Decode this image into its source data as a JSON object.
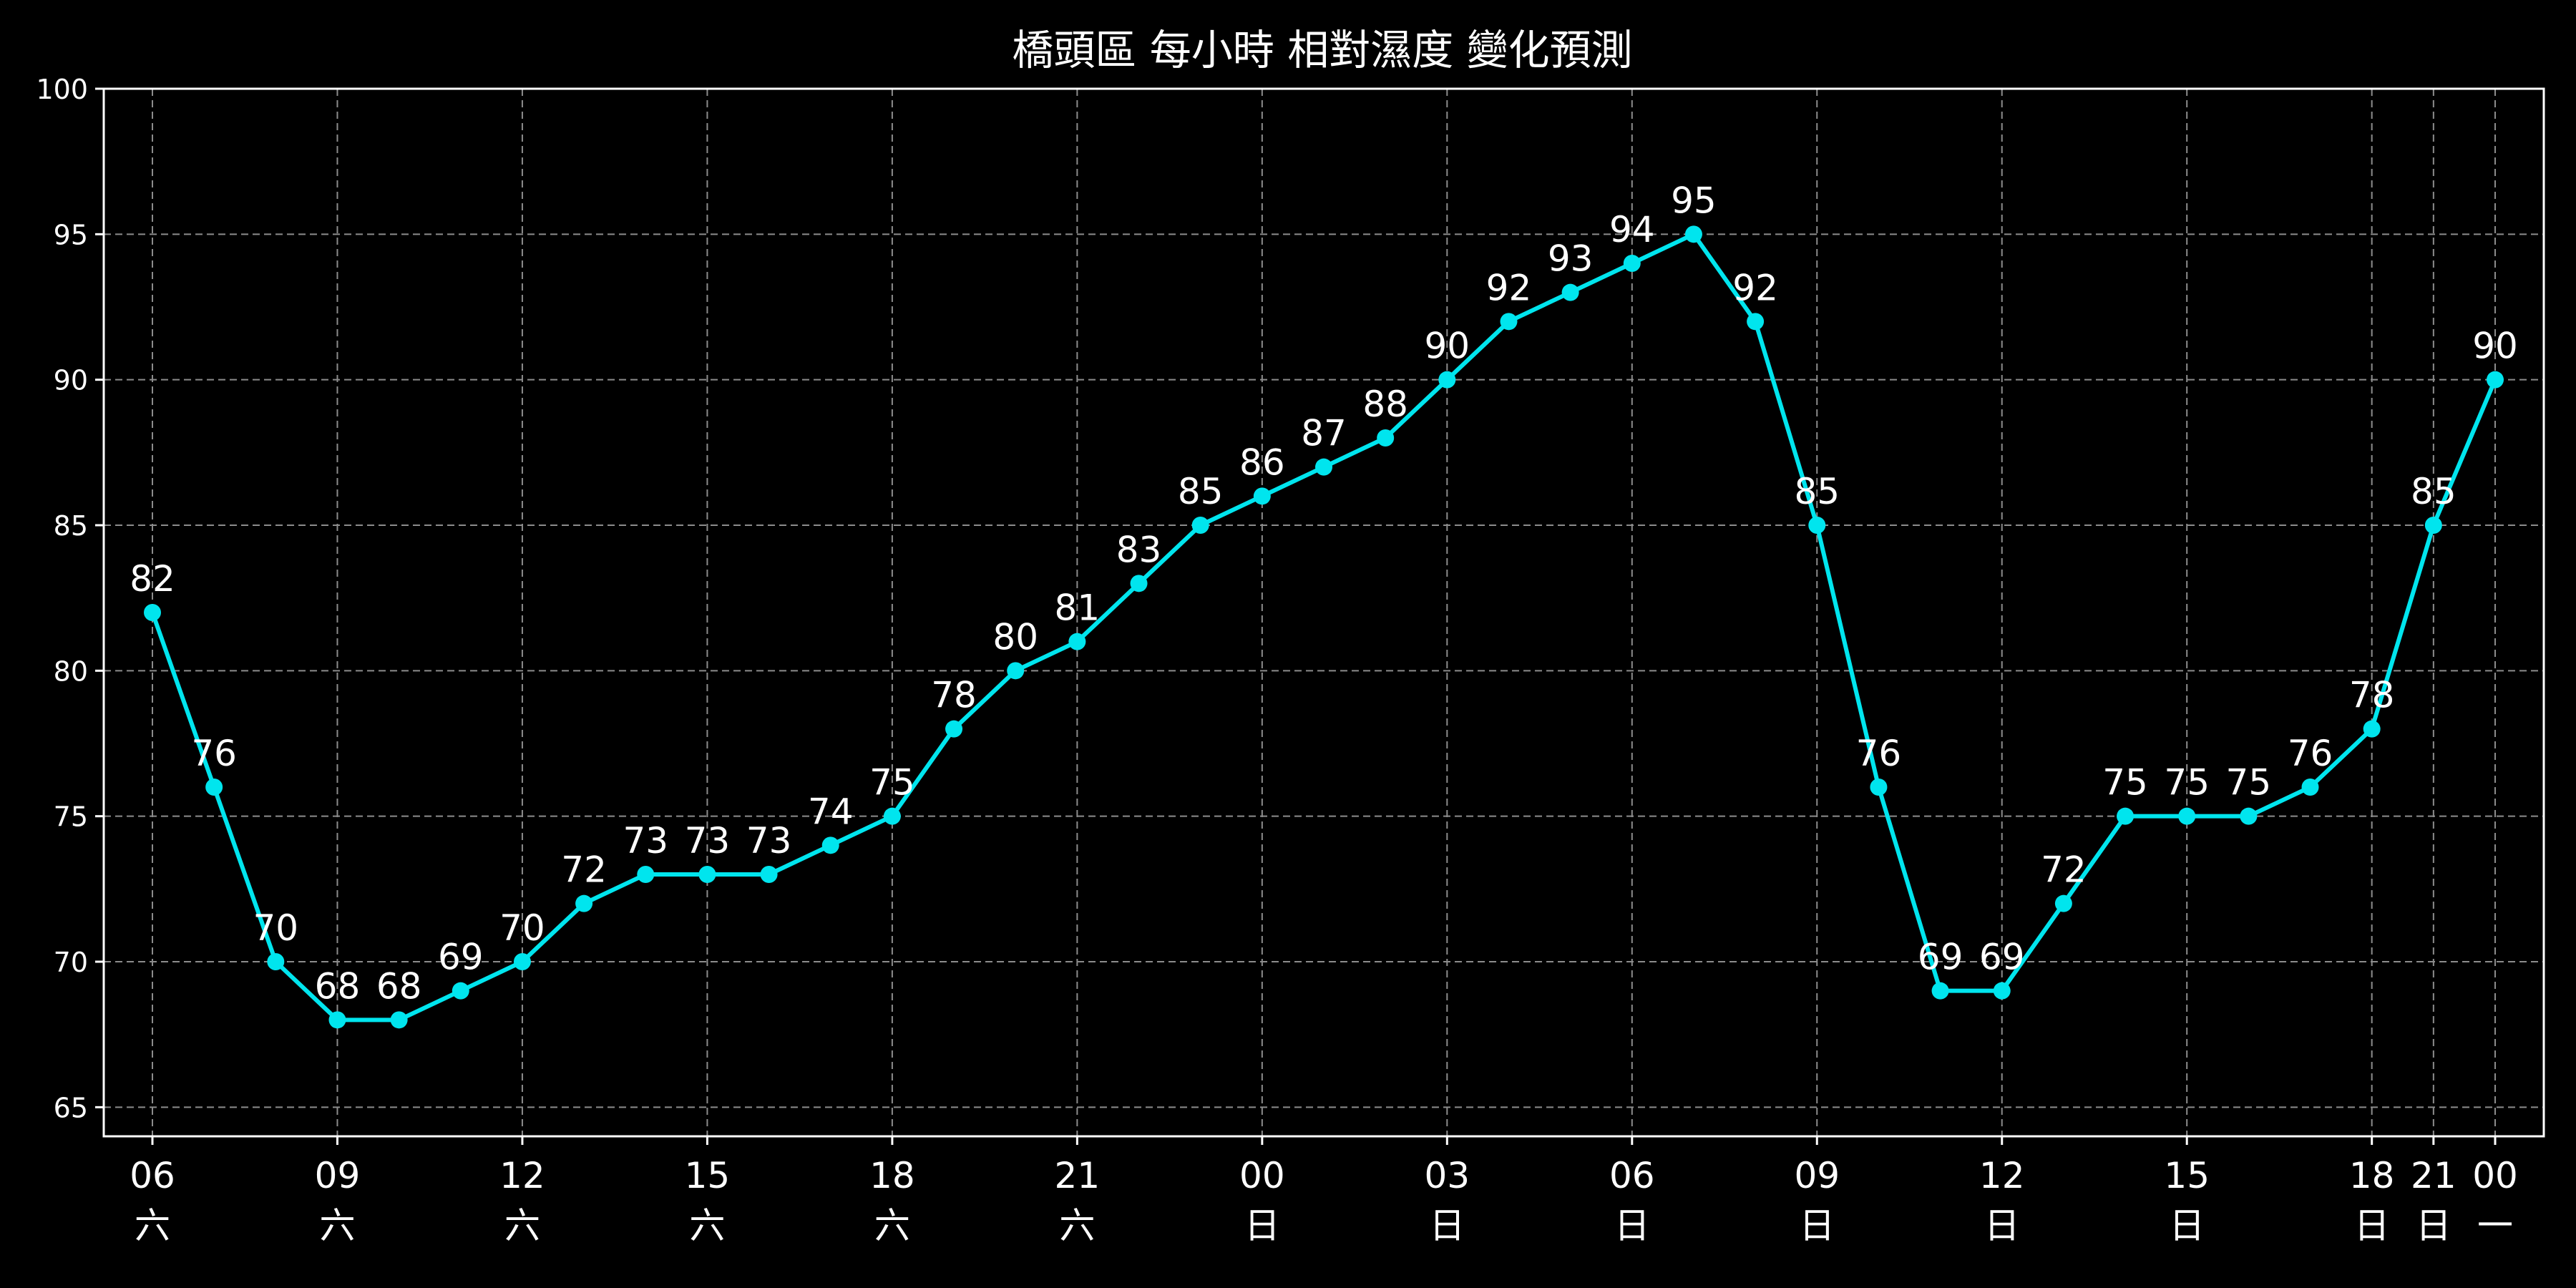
{
  "chart_data": {
    "type": "line",
    "title": "橋頭區 每小時 相對濕度 變化預測",
    "xlabel": "",
    "ylabel": "",
    "ylim": [
      64,
      100
    ],
    "yticks": [
      65,
      70,
      75,
      80,
      85,
      90,
      95,
      100
    ],
    "grid": true,
    "x_ticks": [
      {
        "index": 0,
        "hour": "06",
        "day": "六"
      },
      {
        "index": 3,
        "hour": "09",
        "day": "六"
      },
      {
        "index": 6,
        "hour": "12",
        "day": "六"
      },
      {
        "index": 9,
        "hour": "15",
        "day": "六"
      },
      {
        "index": 12,
        "hour": "18",
        "day": "六"
      },
      {
        "index": 15,
        "hour": "21",
        "day": "六"
      },
      {
        "index": 18,
        "hour": "00",
        "day": "日"
      },
      {
        "index": 21,
        "hour": "03",
        "day": "日"
      },
      {
        "index": 24,
        "hour": "06",
        "day": "日"
      },
      {
        "index": 27,
        "hour": "09",
        "day": "日"
      },
      {
        "index": 30,
        "hour": "12",
        "day": "日"
      },
      {
        "index": 33,
        "hour": "15",
        "day": "日"
      },
      {
        "index": 36,
        "hour": "18",
        "day": "日"
      },
      {
        "index": 37,
        "hour": "21",
        "day": "日"
      },
      {
        "index": 38,
        "hour": "00",
        "day": "一"
      }
    ],
    "series": [
      {
        "color": "#00e5ee",
        "values": [
          82,
          76,
          70,
          68,
          68,
          69,
          70,
          72,
          73,
          73,
          73,
          74,
          75,
          78,
          80,
          81,
          83,
          85,
          86,
          87,
          88,
          90,
          92,
          93,
          94,
          95,
          92,
          85,
          76,
          69,
          69,
          72,
          75,
          75,
          75,
          76,
          78,
          85,
          90
        ]
      }
    ]
  }
}
